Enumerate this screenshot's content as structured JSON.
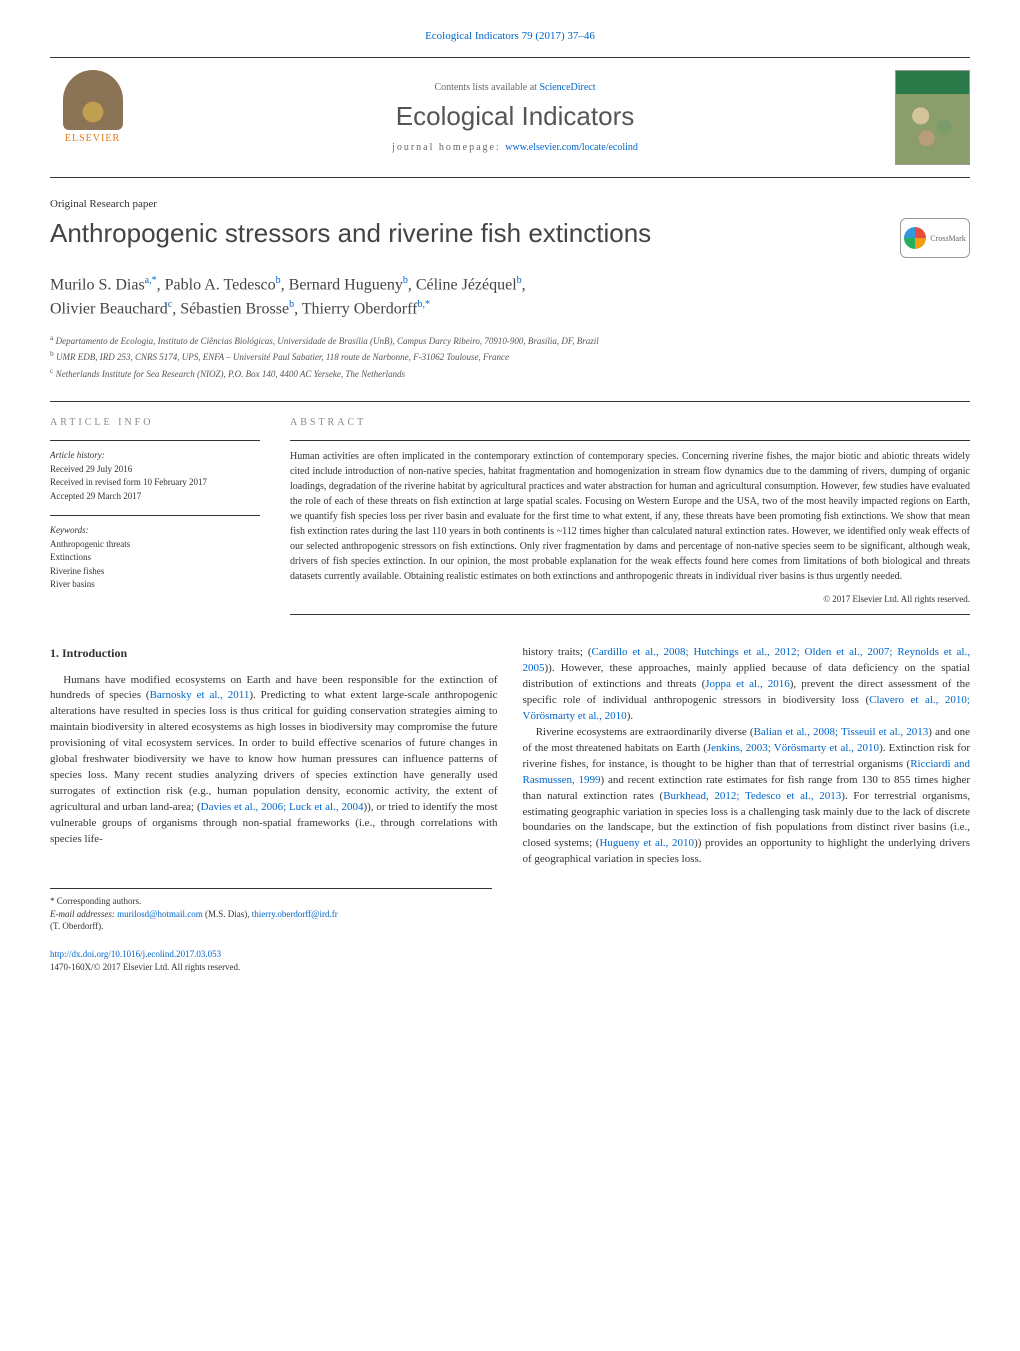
{
  "header": {
    "citation_prefix": "Ecological Indicators 79 (2017) 37–46",
    "contents_prefix": "Contents lists available at ",
    "contents_link": "ScienceDirect",
    "journal_name": "Ecological Indicators",
    "homepage_prefix": "journal homepage: ",
    "homepage_url": "www.elsevier.com/locate/ecolind",
    "publisher": "ELSEVIER"
  },
  "article": {
    "type": "Original Research paper",
    "title": "Anthropogenic stressors and riverine fish extinctions",
    "crossmark_label": "CrossMark"
  },
  "authors": {
    "line1": "Murilo S. Dias",
    "sup1": "a,*",
    "a2": ", Pablo A. Tedesco",
    "sup2": "b",
    "a3": ", Bernard Hugueny",
    "sup3": "b",
    "a4": ", Céline Jézéquel",
    "sup4": "b",
    "a5": ",",
    "line2": "Olivier Beauchard",
    "sup5": "c",
    "a6": ", Sébastien Brosse",
    "sup6": "b",
    "a7": ", Thierry Oberdorff",
    "sup7": "b,*"
  },
  "affiliations": {
    "a": "Departamento de Ecologia, Instituto de Ciências Biológicas, Universidade de Brasília (UnB), Campus Darcy Ribeiro, 70910-900, Brasília, DF, Brazil",
    "b": "UMR EDB, IRD 253, CNRS 5174, UPS, ENFA – Université Paul Sabatier, 118 route de Narbonne, F-31062 Toulouse, France",
    "c": "Netherlands Institute for Sea Research (NIOZ), P.O. Box 140, 4400 AC Yerseke, The Netherlands"
  },
  "info": {
    "heading": "ARTICLE INFO",
    "history_label": "Article history:",
    "received": "Received 29 July 2016",
    "revised": "Received in revised form 10 February 2017",
    "accepted": "Accepted 29 March 2017",
    "keywords_label": "Keywords:",
    "kw1": "Anthropogenic threats",
    "kw2": "Extinctions",
    "kw3": "Riverine fishes",
    "kw4": "River basins"
  },
  "abstract": {
    "heading": "ABSTRACT",
    "text": "Human activities are often implicated in the contemporary extinction of contemporary species. Concerning riverine fishes, the major biotic and abiotic threats widely cited include introduction of non-native species, habitat fragmentation and homogenization in stream flow dynamics due to the damming of rivers, dumping of organic loadings, degradation of the riverine habitat by agricultural practices and water abstraction for human and agricultural consumption. However, few studies have evaluated the role of each of these threats on fish extinction at large spatial scales. Focusing on Western Europe and the USA, two of the most heavily impacted regions on Earth, we quantify fish species loss per river basin and evaluate for the first time to what extent, if any, these threats have been promoting fish extinctions. We show that mean fish extinction rates during the last 110 years in both continents is ~112 times higher than calculated natural extinction rates. However, we identified only weak effects of our selected anthropogenic stressors on fish extinctions. Only river fragmentation by dams and percentage of non-native species seem to be significant, although weak, drivers of fish species extinction. In our opinion, the most probable explanation for the weak effects found here comes from limitations of both biological and threats datasets currently available. Obtaining realistic estimates on both extinctions and anthropogenic threats in individual river basins is thus urgently needed.",
    "copyright": "© 2017 Elsevier Ltd. All rights reserved."
  },
  "body": {
    "section1_heading": "1. Introduction",
    "p1a": "Humans have modified ecosystems on Earth and have been responsible for the extinction of hundreds of species (",
    "p1_ref1": "Barnosky et al., 2011",
    "p1b": "). Predicting to what extent large-scale anthropogenic alterations have resulted in species loss is thus critical for guiding conservation strategies aiming to maintain biodiversity in altered ecosystems as high losses in biodiversity may compromise the future provisioning of vital ecosystem services. In order to build effective scenarios of future changes in global freshwater biodiversity we have to know how human pressures can influence patterns of species loss. Many recent studies analyzing drivers of species extinction have generally used surrogates of extinction risk (e.g., human population density, economic activity, the extent of agricultural and urban land-area; (",
    "p1_ref2": "Davies et al., 2006; Luck et al., 2004",
    "p1c": ")), or tried to identify the most vulnerable groups of organisms through non-spatial frameworks (i.e., through correlations with species life-",
    "p2a": "history traits; (",
    "p2_ref1": "Cardillo et al., 2008; Hutchings et al., 2012; Olden et al., 2007; Reynolds et al., 2005",
    "p2b": ")). However, these approaches, mainly applied because of data deficiency on the spatial distribution of extinctions and threats (",
    "p2_ref2": "Joppa et al., 2016",
    "p2c": "), prevent the direct assessment of the specific role of individual anthropogenic stressors in biodiversity loss (",
    "p2_ref3": "Clavero et al., 2010; Vörösmarty et al., 2010",
    "p2d": ").",
    "p3a": "Riverine ecosystems are extraordinarily diverse (",
    "p3_ref1": "Balian et al., 2008; Tisseuil et al., 2013",
    "p3b": ") and one of the most threatened habitats on Earth (",
    "p3_ref2": "Jenkins, 2003; Vörösmarty et al., 2010",
    "p3c": "). Extinction risk for riverine fishes, for instance, is thought to be higher than that of terrestrial organisms (",
    "p3_ref3": "Ricciardi and Rasmussen, 1999",
    "p3d": ") and recent extinction rate estimates for fish range from 130 to 855 times higher than natural extinction rates (",
    "p3_ref4": "Burkhead, 2012; Tedesco et al., 2013",
    "p3e": "). For terrestrial organisms, estimating geographic variation in species loss is a challenging task mainly due to the lack of discrete boundaries on the landscape, but the extinction of fish populations from distinct river basins (i.e., closed systems; (",
    "p3_ref5": "Hugueny et al., 2010",
    "p3f": ")) provides an opportunity to highlight the underlying drivers of geographical variation in species loss."
  },
  "footnotes": {
    "corr": "* Corresponding authors.",
    "email_label": "E-mail addresses: ",
    "email1": "murilosd@hotmail.com",
    "email1_name": " (M.S. Dias), ",
    "email2": "thierry.oberdorff@ird.fr",
    "email2_name": " (T. Oberdorff)."
  },
  "footer": {
    "doi": "http://dx.doi.org/10.1016/j.ecolind.2017.03.053",
    "issn": "1470-160X/© 2017 Elsevier Ltd. All rights reserved."
  },
  "colors": {
    "link": "#0066cc",
    "publisher": "#e67817",
    "text": "#333333",
    "muted": "#888888"
  }
}
